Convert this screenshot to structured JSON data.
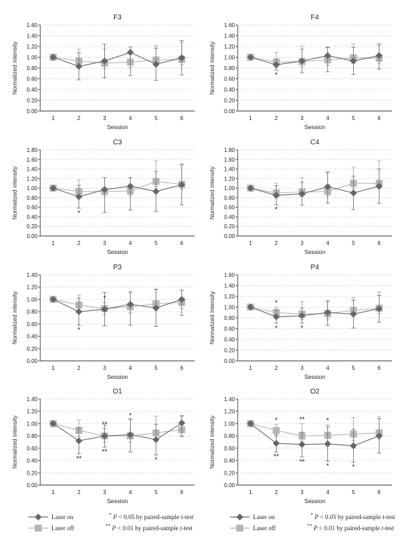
{
  "colors": {
    "laser_on": "#666666",
    "laser_off": "#b5b5b5",
    "axis": "#333333",
    "grid": "#9a9a9a",
    "error": "#888888"
  },
  "legend": {
    "laser_on": "Laser on",
    "laser_off": "Laser off",
    "sig1_marks": "*",
    "sig1_text_a": "P",
    "sig1_text_b": " < 0.05 by paired-sample ",
    "sig1_text_c": "t",
    "sig1_text_d": "-test",
    "sig2_marks": "**",
    "sig2_text_a": "P",
    "sig2_text_b": " < 0.01 by paired-sample ",
    "sig2_text_c": "t",
    "sig2_text_d": "-test"
  },
  "chart_data": [
    {
      "title": "F3",
      "type": "line",
      "xlabel": "Session",
      "ylabel": "Normalized intensity",
      "x": [
        1,
        2,
        3,
        4,
        5,
        6
      ],
      "ylim": [
        0,
        1.6
      ],
      "yticks": [
        "0.00",
        "0.20",
        "0.40",
        "0.60",
        "0.80",
        "1.00",
        "1.20",
        "1.40",
        "1.60"
      ],
      "series": [
        {
          "name": "Laser on",
          "values": [
            1.0,
            0.83,
            0.93,
            1.09,
            0.87,
            0.99
          ],
          "err_low": [
            0,
            0.25,
            0.31,
            0.43,
            0.3,
            0.32
          ],
          "err_high": [
            0,
            0.25,
            0.31,
            0.1,
            0.3,
            0.32
          ]
        },
        {
          "name": "Laser off",
          "values": [
            1.0,
            0.93,
            0.89,
            0.91,
            0.95,
            0.96
          ],
          "err_low": [
            0,
            0.1,
            0.1,
            0.1,
            0.1,
            0.1
          ],
          "err_high": [
            0,
            0.22,
            0.27,
            0.2,
            0.27,
            0.31
          ]
        }
      ],
      "annotations": []
    },
    {
      "title": "F4",
      "type": "line",
      "xlabel": "Session",
      "ylabel": "Normalized intensity",
      "x": [
        1,
        2,
        3,
        4,
        5,
        6
      ],
      "ylim": [
        0,
        1.6
      ],
      "yticks": [
        "0.00",
        "0.20",
        "0.40",
        "0.60",
        "0.80",
        "1.00",
        "1.20",
        "1.40",
        "1.60"
      ],
      "series": [
        {
          "name": "Laser on",
          "values": [
            1.0,
            0.86,
            0.93,
            1.03,
            0.93,
            1.03
          ],
          "err_low": [
            0,
            0.1,
            0.22,
            0.3,
            0.25,
            0.25
          ],
          "err_high": [
            0,
            0.1,
            0.22,
            0.15,
            0.25,
            0.2
          ]
        },
        {
          "name": "Laser off",
          "values": [
            1.0,
            0.91,
            0.92,
            0.95,
            0.99,
            0.98
          ],
          "err_low": [
            0,
            0.1,
            0.1,
            0.1,
            0.1,
            0.1
          ],
          "err_high": [
            0,
            0.18,
            0.29,
            0.24,
            0.26,
            0.28
          ]
        }
      ],
      "annotations": [
        {
          "x": 2,
          "side": "below",
          "series": 0,
          "text": "*"
        }
      ]
    },
    {
      "title": "C3",
      "type": "line",
      "xlabel": "Session",
      "ylabel": "Normalized intensity",
      "x": [
        1,
        2,
        3,
        4,
        5,
        6
      ],
      "ylim": [
        0,
        1.8
      ],
      "yticks": [
        "0.00",
        "0.20",
        "0.40",
        "0.60",
        "0.80",
        "1.00",
        "1.20",
        "1.40",
        "1.60",
        "1.80"
      ],
      "series": [
        {
          "name": "Laser on",
          "values": [
            1.0,
            0.82,
            0.97,
            1.04,
            0.93,
            1.07
          ],
          "err_low": [
            0,
            0.24,
            0.48,
            0.5,
            0.42,
            0.42
          ],
          "err_high": [
            0,
            0.24,
            0.25,
            0.18,
            0.42,
            0.42
          ]
        },
        {
          "name": "Laser off",
          "values": [
            1.0,
            0.93,
            0.93,
            0.94,
            1.14,
            1.08
          ],
          "err_low": [
            0,
            0.1,
            0.1,
            0.1,
            0.1,
            0.1
          ],
          "err_high": [
            0,
            0.24,
            0.29,
            0.28,
            0.43,
            0.43
          ]
        }
      ],
      "annotations": [
        {
          "x": 2,
          "side": "below",
          "series": 0,
          "text": "*"
        }
      ]
    },
    {
      "title": "C4",
      "type": "line",
      "xlabel": "Session",
      "ylabel": "Normalized intensity",
      "x": [
        1,
        2,
        3,
        4,
        5,
        6
      ],
      "ylim": [
        0,
        1.8
      ],
      "yticks": [
        "0.00",
        "0.20",
        "0.40",
        "0.60",
        "0.80",
        "1.00",
        "1.20",
        "1.40",
        "1.60",
        "1.80"
      ],
      "series": [
        {
          "name": "Laser on",
          "values": [
            1.0,
            0.85,
            0.88,
            1.03,
            0.9,
            1.04
          ],
          "err_low": [
            0,
            0.2,
            0.24,
            0.34,
            0.35,
            0.36
          ],
          "err_high": [
            0,
            0.2,
            0.24,
            0.3,
            0.35,
            0.36
          ]
        },
        {
          "name": "Laser off",
          "values": [
            1.0,
            0.9,
            0.92,
            0.93,
            1.1,
            1.1
          ],
          "err_low": [
            0,
            0.1,
            0.1,
            0.1,
            0.1,
            0.1
          ],
          "err_high": [
            0,
            0.2,
            0.3,
            0.41,
            0.34,
            0.47
          ]
        }
      ],
      "annotations": [
        {
          "x": 2,
          "side": "below",
          "series": 0,
          "text": "*"
        }
      ]
    },
    {
      "title": "P3",
      "type": "line",
      "xlabel": "Session",
      "ylabel": "Normalized intensity",
      "x": [
        1,
        2,
        3,
        4,
        5,
        6
      ],
      "ylim": [
        0,
        1.4
      ],
      "yticks": [
        "0.00",
        "0.20",
        "0.40",
        "0.60",
        "0.80",
        "1.00",
        "1.20",
        "1.40"
      ],
      "series": [
        {
          "name": "Laser on",
          "values": [
            1.0,
            0.8,
            0.84,
            0.92,
            0.86,
            1.0
          ],
          "err_low": [
            0,
            0.22,
            0.27,
            0.34,
            0.3,
            0.26
          ],
          "err_high": [
            0,
            0.22,
            0.27,
            0.2,
            0.3,
            0.15
          ]
        },
        {
          "name": "Laser off",
          "values": [
            1.0,
            0.91,
            0.85,
            0.88,
            0.93,
            0.95
          ],
          "err_low": [
            0,
            0.1,
            0.1,
            0.1,
            0.1,
            0.1
          ],
          "err_high": [
            0,
            0.16,
            0.1,
            0.24,
            0.24,
            0.2
          ]
        }
      ],
      "annotations": [
        {
          "x": 2,
          "side": "below",
          "series": 0,
          "text": "*"
        },
        {
          "x": 3,
          "side": "above",
          "series": 1,
          "text": "*"
        }
      ]
    },
    {
      "title": "P4",
      "type": "line",
      "xlabel": "Session",
      "ylabel": "Normalized intensity",
      "x": [
        1,
        2,
        3,
        4,
        5,
        6
      ],
      "ylim": [
        0,
        1.6
      ],
      "yticks": [
        "0.00",
        "0.20",
        "0.40",
        "0.60",
        "0.80",
        "1.00",
        "1.20",
        "1.40",
        "1.60"
      ],
      "series": [
        {
          "name": "Laser on",
          "values": [
            1.0,
            0.82,
            0.84,
            0.9,
            0.87,
            0.97
          ],
          "err_low": [
            0,
            0.12,
            0.14,
            0.24,
            0.26,
            0.25
          ],
          "err_high": [
            0,
            0.12,
            0.14,
            0.2,
            0.26,
            0.25
          ]
        },
        {
          "name": "Laser off",
          "values": [
            1.0,
            0.9,
            0.87,
            0.88,
            0.94,
            0.98
          ],
          "err_low": [
            0,
            0.1,
            0.1,
            0.1,
            0.1,
            0.1
          ],
          "err_high": [
            0,
            0.1,
            0.23,
            0.25,
            0.24,
            0.3
          ]
        }
      ],
      "annotations": [
        {
          "x": 2,
          "side": "above",
          "series": 1,
          "text": "*"
        },
        {
          "x": 2,
          "side": "below",
          "series": 0,
          "text": "*"
        },
        {
          "x": 3,
          "side": "below",
          "series": 0,
          "text": "*"
        }
      ]
    },
    {
      "title": "O1",
      "type": "line",
      "xlabel": "Session",
      "ylabel": "Normalized intensity",
      "x": [
        1,
        2,
        3,
        4,
        5,
        6
      ],
      "ylim": [
        0,
        1.4
      ],
      "yticks": [
        "0.00",
        "0.20",
        "0.40",
        "0.60",
        "0.80",
        "1.00",
        "1.20",
        "1.40"
      ],
      "series": [
        {
          "name": "Laser on",
          "values": [
            1.0,
            0.72,
            0.8,
            0.82,
            0.74,
            1.01
          ],
          "err_low": [
            0,
            0.21,
            0.18,
            0.28,
            0.25,
            0.22
          ],
          "err_high": [
            0,
            0.21,
            0.18,
            0.26,
            0.25,
            0.12
          ]
        },
        {
          "name": "Laser off",
          "values": [
            1.0,
            0.89,
            0.8,
            0.8,
            0.85,
            0.9
          ],
          "err_low": [
            0,
            0.1,
            0.1,
            0.1,
            0.1,
            0.1
          ],
          "err_high": [
            0,
            0.17,
            0.12,
            0.26,
            0.27,
            0.22
          ]
        }
      ],
      "annotations": [
        {
          "x": 2,
          "side": "below",
          "series": 0,
          "text": "**"
        },
        {
          "x": 3,
          "side": "above",
          "series": 1,
          "text": "**"
        },
        {
          "x": 3,
          "side": "below",
          "series": 0,
          "text": "**"
        },
        {
          "x": 4,
          "side": "above",
          "series": 1,
          "text": "*"
        },
        {
          "x": 5,
          "side": "below",
          "series": 0,
          "text": "*"
        }
      ]
    },
    {
      "title": "O2",
      "type": "line",
      "xlabel": "Session",
      "ylabel": "Normalized intensity",
      "x": [
        1,
        2,
        3,
        4,
        5,
        6
      ],
      "ylim": [
        0,
        1.4
      ],
      "yticks": [
        "0.00",
        "0.20",
        "0.40",
        "0.60",
        "0.80",
        "1.00",
        "1.20",
        "1.40"
      ],
      "series": [
        {
          "name": "Laser on",
          "values": [
            1.0,
            0.68,
            0.66,
            0.67,
            0.64,
            0.8
          ],
          "err_low": [
            0,
            0.14,
            0.2,
            0.28,
            0.27,
            0.28
          ],
          "err_high": [
            0,
            0.14,
            0.2,
            0.28,
            0.27,
            0.28
          ]
        },
        {
          "name": "Laser off",
          "values": [
            1.0,
            0.89,
            0.8,
            0.81,
            0.83,
            0.85
          ],
          "err_low": [
            0,
            0.1,
            0.1,
            0.1,
            0.1,
            0.1
          ],
          "err_high": [
            0,
            0.1,
            0.2,
            0.17,
            0.27,
            0.26
          ]
        }
      ],
      "annotations": [
        {
          "x": 2,
          "side": "above",
          "series": 1,
          "text": "*"
        },
        {
          "x": 2,
          "side": "below",
          "series": 0,
          "text": "**"
        },
        {
          "x": 3,
          "side": "above",
          "series": 1,
          "text": "**"
        },
        {
          "x": 3,
          "side": "below",
          "series": 0,
          "text": "**"
        },
        {
          "x": 4,
          "side": "above",
          "series": 1,
          "text": "*"
        },
        {
          "x": 4,
          "side": "below",
          "series": 0,
          "text": "*"
        },
        {
          "x": 5,
          "side": "below",
          "series": 0,
          "text": "*"
        }
      ]
    }
  ]
}
